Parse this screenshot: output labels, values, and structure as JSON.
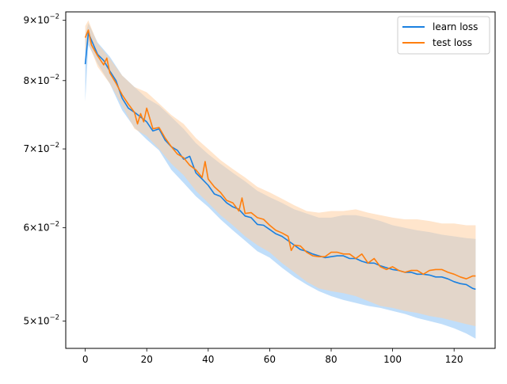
{
  "chart_data": {
    "type": "line",
    "title": "",
    "xlabel": "",
    "ylabel": "",
    "y_scale": "log",
    "xlim": [
      -6.35,
      133.35
    ],
    "ylim": [
      0.0474,
      0.0915
    ],
    "x_ticks": [
      0,
      20,
      40,
      60,
      80,
      100,
      120
    ],
    "x_tick_labels": [
      "0",
      "20",
      "40",
      "60",
      "80",
      "100",
      "120"
    ],
    "y_ticks": [
      0.05,
      0.06,
      0.07,
      0.08,
      0.09
    ],
    "y_tick_labels": [
      {
        "mantissa": "5",
        "exponent": "-2"
      },
      {
        "mantissa": "6",
        "exponent": "-2"
      },
      {
        "mantissa": "7",
        "exponent": "-2"
      },
      {
        "mantissa": "8",
        "exponent": "-2"
      },
      {
        "mantissa": "9",
        "exponent": "-2"
      }
    ],
    "tick_base": "×10",
    "grid": false,
    "legend_position": "top-right",
    "series": [
      {
        "name": "learn loss",
        "color": "#1f77b4",
        "line_color": "#1a80e0",
        "band_color": "#8cc3f5",
        "points": [
          [
            0,
            0.0826
          ],
          [
            1,
            0.0878
          ],
          [
            4,
            0.0842
          ],
          [
            6,
            0.0832
          ],
          [
            8,
            0.0815
          ],
          [
            10,
            0.08
          ],
          [
            12,
            0.0773
          ],
          [
            14,
            0.0758
          ],
          [
            16,
            0.0752
          ],
          [
            18,
            0.0745
          ],
          [
            20,
            0.0738
          ],
          [
            22,
            0.0725
          ],
          [
            24,
            0.0728
          ],
          [
            26,
            0.0712
          ],
          [
            28,
            0.0703
          ],
          [
            30,
            0.0698
          ],
          [
            32,
            0.0686
          ],
          [
            34,
            0.069
          ],
          [
            36,
            0.0668
          ],
          [
            38,
            0.066
          ],
          [
            40,
            0.0652
          ],
          [
            42,
            0.0641
          ],
          [
            44,
            0.0638
          ],
          [
            46,
            0.063
          ],
          [
            48,
            0.0625
          ],
          [
            50,
            0.0622
          ],
          [
            52,
            0.0614
          ],
          [
            54,
            0.0612
          ],
          [
            56,
            0.0604
          ],
          [
            58,
            0.0603
          ],
          [
            60,
            0.0598
          ],
          [
            62,
            0.0593
          ],
          [
            64,
            0.059
          ],
          [
            66,
            0.0585
          ],
          [
            68,
            0.058
          ],
          [
            70,
            0.0575
          ],
          [
            72,
            0.0573
          ],
          [
            74,
            0.057
          ],
          [
            76,
            0.0568
          ],
          [
            78,
            0.0566
          ],
          [
            80,
            0.0567
          ],
          [
            82,
            0.0568
          ],
          [
            84,
            0.0568
          ],
          [
            86,
            0.0565
          ],
          [
            88,
            0.0565
          ],
          [
            90,
            0.0562
          ],
          [
            92,
            0.056
          ],
          [
            94,
            0.056
          ],
          [
            96,
            0.0557
          ],
          [
            98,
            0.0555
          ],
          [
            100,
            0.0553
          ],
          [
            102,
            0.0552
          ],
          [
            104,
            0.055
          ],
          [
            106,
            0.055
          ],
          [
            108,
            0.0548
          ],
          [
            110,
            0.0548
          ],
          [
            112,
            0.0547
          ],
          [
            114,
            0.0545
          ],
          [
            116,
            0.0545
          ],
          [
            118,
            0.0543
          ],
          [
            120,
            0.054
          ],
          [
            122,
            0.0538
          ],
          [
            124,
            0.0537
          ],
          [
            126,
            0.0533
          ],
          [
            127,
            0.0532
          ]
        ],
        "band_lower": [
          [
            0,
            0.0768
          ],
          [
            1,
            0.0858
          ],
          [
            4,
            0.0827
          ],
          [
            8,
            0.0795
          ],
          [
            12,
            0.0755
          ],
          [
            16,
            0.073
          ],
          [
            20,
            0.0713
          ],
          [
            24,
            0.0698
          ],
          [
            28,
            0.0672
          ],
          [
            32,
            0.0655
          ],
          [
            36,
            0.0638
          ],
          [
            40,
            0.0625
          ],
          [
            44,
            0.061
          ],
          [
            48,
            0.0597
          ],
          [
            52,
            0.0585
          ],
          [
            56,
            0.0573
          ],
          [
            60,
            0.0566
          ],
          [
            64,
            0.0555
          ],
          [
            68,
            0.0545
          ],
          [
            72,
            0.0537
          ],
          [
            76,
            0.053
          ],
          [
            80,
            0.0525
          ],
          [
            84,
            0.0521
          ],
          [
            88,
            0.0518
          ],
          [
            92,
            0.0515
          ],
          [
            96,
            0.0513
          ],
          [
            100,
            0.051
          ],
          [
            104,
            0.0507
          ],
          [
            108,
            0.0503
          ],
          [
            112,
            0.05
          ],
          [
            116,
            0.0497
          ],
          [
            120,
            0.0493
          ],
          [
            124,
            0.0488
          ],
          [
            127,
            0.0483
          ]
        ],
        "band_upper": [
          [
            0,
            0.0875
          ],
          [
            1,
            0.0895
          ],
          [
            4,
            0.0862
          ],
          [
            8,
            0.0838
          ],
          [
            12,
            0.0808
          ],
          [
            16,
            0.079
          ],
          [
            20,
            0.0773
          ],
          [
            24,
            0.0762
          ],
          [
            28,
            0.0745
          ],
          [
            32,
            0.0728
          ],
          [
            36,
            0.0708
          ],
          [
            40,
            0.0693
          ],
          [
            44,
            0.068
          ],
          [
            48,
            0.0668
          ],
          [
            52,
            0.0657
          ],
          [
            56,
            0.0645
          ],
          [
            60,
            0.0637
          ],
          [
            64,
            0.063
          ],
          [
            68,
            0.0622
          ],
          [
            72,
            0.0617
          ],
          [
            76,
            0.0612
          ],
          [
            80,
            0.0612
          ],
          [
            84,
            0.0615
          ],
          [
            88,
            0.0615
          ],
          [
            92,
            0.0612
          ],
          [
            96,
            0.0608
          ],
          [
            100,
            0.0603
          ],
          [
            104,
            0.06
          ],
          [
            108,
            0.0597
          ],
          [
            112,
            0.0595
          ],
          [
            116,
            0.0592
          ],
          [
            120,
            0.059
          ],
          [
            124,
            0.0588
          ],
          [
            127,
            0.0587
          ]
        ]
      },
      {
        "name": "test loss",
        "color": "#ff7f0e",
        "line_color": "#ff7f0e",
        "band_color": "#ffcfa3",
        "points": [
          [
            0,
            0.087
          ],
          [
            1,
            0.0883
          ],
          [
            2,
            0.0858
          ],
          [
            4,
            0.084
          ],
          [
            6,
            0.0825
          ],
          [
            7,
            0.0836
          ],
          [
            8,
            0.0812
          ],
          [
            10,
            0.0796
          ],
          [
            12,
            0.0778
          ],
          [
            14,
            0.0764
          ],
          [
            16,
            0.0752
          ],
          [
            17,
            0.0735
          ],
          [
            18,
            0.075
          ],
          [
            19,
            0.0738
          ],
          [
            20,
            0.0758
          ],
          [
            22,
            0.0728
          ],
          [
            24,
            0.073
          ],
          [
            26,
            0.0715
          ],
          [
            28,
            0.0703
          ],
          [
            30,
            0.0693
          ],
          [
            32,
            0.0688
          ],
          [
            34,
            0.0678
          ],
          [
            36,
            0.0672
          ],
          [
            38,
            0.0662
          ],
          [
            39,
            0.0683
          ],
          [
            40,
            0.066
          ],
          [
            42,
            0.065
          ],
          [
            44,
            0.0643
          ],
          [
            46,
            0.0633
          ],
          [
            48,
            0.063
          ],
          [
            50,
            0.062
          ],
          [
            51,
            0.0636
          ],
          [
            52,
            0.0617
          ],
          [
            54,
            0.0618
          ],
          [
            56,
            0.0612
          ],
          [
            58,
            0.061
          ],
          [
            60,
            0.0603
          ],
          [
            62,
            0.0597
          ],
          [
            64,
            0.0594
          ],
          [
            66,
            0.059
          ],
          [
            67,
            0.0574
          ],
          [
            68,
            0.058
          ],
          [
            70,
            0.0579
          ],
          [
            72,
            0.0572
          ],
          [
            74,
            0.0568
          ],
          [
            76,
            0.0567
          ],
          [
            78,
            0.0567
          ],
          [
            80,
            0.0572
          ],
          [
            82,
            0.0572
          ],
          [
            84,
            0.057
          ],
          [
            86,
            0.057
          ],
          [
            88,
            0.0565
          ],
          [
            90,
            0.057
          ],
          [
            92,
            0.056
          ],
          [
            94,
            0.0565
          ],
          [
            96,
            0.0556
          ],
          [
            98,
            0.0553
          ],
          [
            100,
            0.0556
          ],
          [
            102,
            0.0552
          ],
          [
            104,
            0.055
          ],
          [
            106,
            0.0552
          ],
          [
            108,
            0.0552
          ],
          [
            110,
            0.0548
          ],
          [
            112,
            0.0552
          ],
          [
            114,
            0.0553
          ],
          [
            116,
            0.0553
          ],
          [
            118,
            0.055
          ],
          [
            120,
            0.0548
          ],
          [
            122,
            0.0545
          ],
          [
            124,
            0.0543
          ],
          [
            126,
            0.0546
          ],
          [
            127,
            0.0546
          ]
        ],
        "band_lower": [
          [
            0,
            0.0848
          ],
          [
            1,
            0.0862
          ],
          [
            4,
            0.0822
          ],
          [
            8,
            0.0795
          ],
          [
            12,
            0.0762
          ],
          [
            16,
            0.0728
          ],
          [
            20,
            0.0718
          ],
          [
            24,
            0.07
          ],
          [
            28,
            0.068
          ],
          [
            32,
            0.0665
          ],
          [
            36,
            0.0645
          ],
          [
            40,
            0.063
          ],
          [
            44,
            0.0615
          ],
          [
            48,
            0.0603
          ],
          [
            52,
            0.059
          ],
          [
            56,
            0.058
          ],
          [
            60,
            0.0572
          ],
          [
            64,
            0.056
          ],
          [
            68,
            0.055
          ],
          [
            72,
            0.054
          ],
          [
            76,
            0.0533
          ],
          [
            80,
            0.053
          ],
          [
            84,
            0.0528
          ],
          [
            88,
            0.0525
          ],
          [
            92,
            0.052
          ],
          [
            96,
            0.0515
          ],
          [
            100,
            0.0513
          ],
          [
            104,
            0.051
          ],
          [
            108,
            0.0508
          ],
          [
            112,
            0.0505
          ],
          [
            116,
            0.0503
          ],
          [
            120,
            0.05
          ],
          [
            124,
            0.0497
          ],
          [
            127,
            0.0495
          ]
        ],
        "band_upper": [
          [
            0,
            0.089
          ],
          [
            1,
            0.09
          ],
          [
            4,
            0.086
          ],
          [
            8,
            0.0835
          ],
          [
            12,
            0.0808
          ],
          [
            16,
            0.079
          ],
          [
            20,
            0.0782
          ],
          [
            24,
            0.0765
          ],
          [
            28,
            0.0748
          ],
          [
            32,
            0.0735
          ],
          [
            36,
            0.0715
          ],
          [
            40,
            0.07
          ],
          [
            44,
            0.0685
          ],
          [
            48,
            0.0673
          ],
          [
            52,
            0.0662
          ],
          [
            56,
            0.065
          ],
          [
            60,
            0.0643
          ],
          [
            64,
            0.0635
          ],
          [
            68,
            0.0627
          ],
          [
            72,
            0.062
          ],
          [
            76,
            0.0618
          ],
          [
            80,
            0.062
          ],
          [
            84,
            0.062
          ],
          [
            88,
            0.0622
          ],
          [
            92,
            0.0618
          ],
          [
            96,
            0.0615
          ],
          [
            100,
            0.0612
          ],
          [
            104,
            0.061
          ],
          [
            108,
            0.061
          ],
          [
            112,
            0.0608
          ],
          [
            116,
            0.0605
          ],
          [
            120,
            0.0605
          ],
          [
            124,
            0.0603
          ],
          [
            127,
            0.0603
          ]
        ]
      }
    ]
  }
}
